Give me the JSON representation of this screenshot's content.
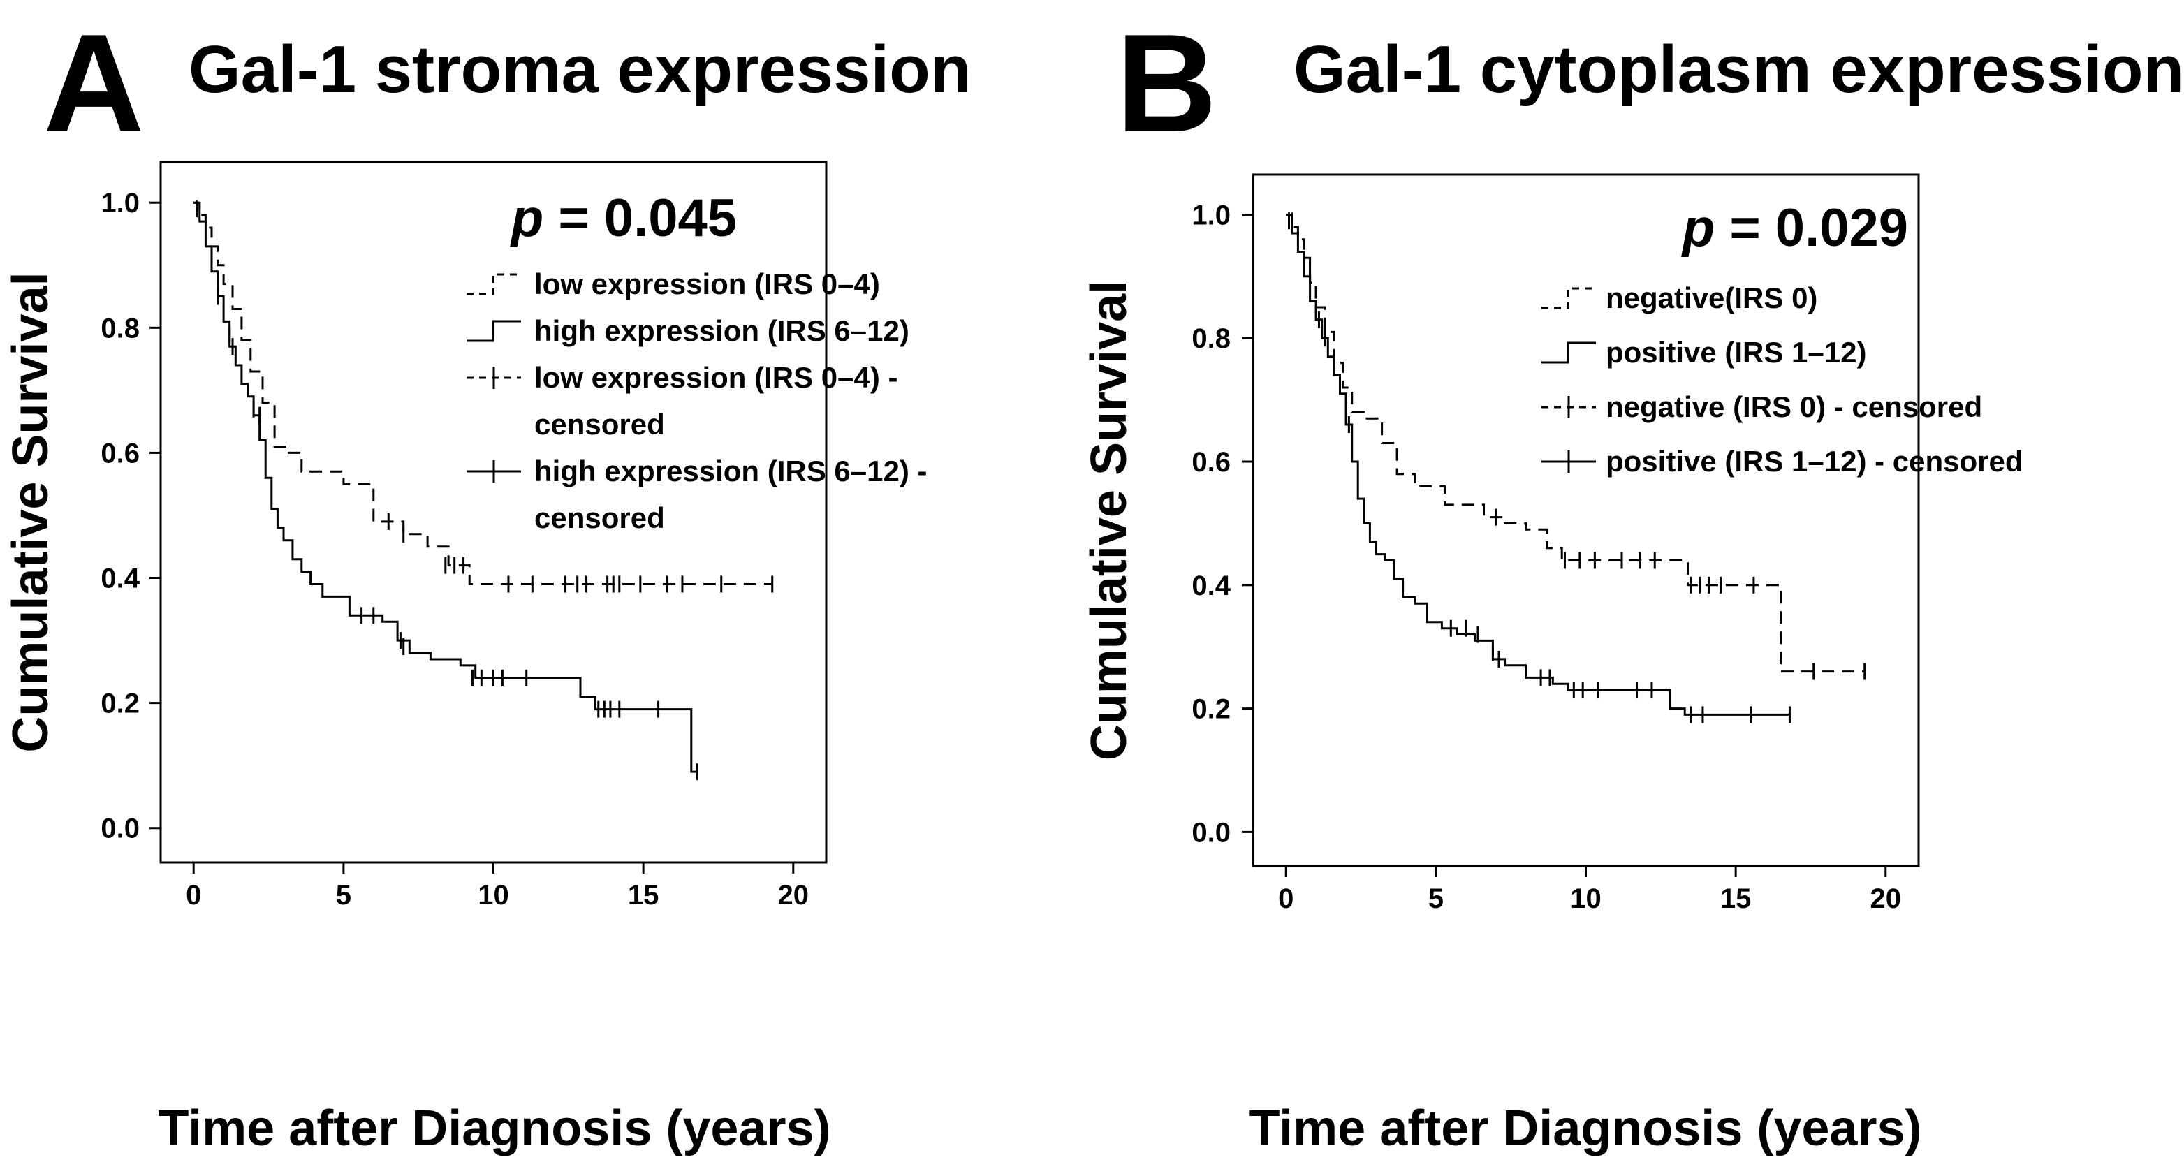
{
  "chart_data": [
    {
      "panel": "A",
      "type": "line",
      "title": "Gal-1 stroma expression",
      "xlabel": "Time after Diagnosis (years)",
      "ylabel": "Cumulative Survival",
      "xlim": [
        -1.1,
        21.1
      ],
      "ylim": [
        -0.055,
        1.065
      ],
      "xticks": [
        0,
        5,
        10,
        15,
        20
      ],
      "xtick_labels": [
        "0",
        "5",
        "10",
        "15",
        "20"
      ],
      "yticks": [
        0.0,
        0.2,
        0.4,
        0.6,
        0.8,
        1.0
      ],
      "ytick_labels": [
        "0.0",
        "0.2",
        "0.4",
        "0.6",
        "0.8",
        "1.0"
      ],
      "p_label": "p",
      "p_value": "= 0.045",
      "legend": [
        {
          "label": "low expression (IRS 0–4)",
          "style": "dashed",
          "marker": "step"
        },
        {
          "label": "high expression (IRS 6–12)",
          "style": "solid",
          "marker": "step"
        },
        {
          "label": "low expression (IRS 0–4) -",
          "label2": "censored",
          "style": "dashed",
          "marker": "censor"
        },
        {
          "label": "high expression (IRS 6–12) -",
          "label2": "censored",
          "style": "solid",
          "marker": "censor"
        }
      ],
      "series": [
        {
          "name": "low expression (IRS 0–4)",
          "style": "dashed",
          "x": [
            0,
            0.2,
            0.4,
            0.6,
            0.8,
            1.0,
            1.3,
            1.6,
            1.9,
            2.3,
            2.7,
            3.1,
            3.6,
            4.3,
            5.0,
            6.0,
            7.0,
            7.8,
            8.5,
            9.2,
            19.3
          ],
          "y": [
            1.0,
            0.98,
            0.96,
            0.93,
            0.9,
            0.87,
            0.83,
            0.78,
            0.73,
            0.68,
            0.61,
            0.6,
            0.57,
            0.57,
            0.55,
            0.49,
            0.47,
            0.45,
            0.42,
            0.39,
            0.39
          ],
          "censored": [
            [
              2.2,
              0.66
            ],
            [
              6.5,
              0.49
            ],
            [
              7.0,
              0.47
            ],
            [
              8.4,
              0.42
            ],
            [
              8.7,
              0.42
            ],
            [
              9.0,
              0.42
            ],
            [
              10.5,
              0.39
            ],
            [
              11.3,
              0.39
            ],
            [
              12.4,
              0.39
            ],
            [
              12.8,
              0.39
            ],
            [
              13.1,
              0.39
            ],
            [
              13.8,
              0.39
            ],
            [
              14.0,
              0.39
            ],
            [
              14.2,
              0.39
            ],
            [
              14.9,
              0.39
            ],
            [
              15.8,
              0.39
            ],
            [
              16.3,
              0.39
            ],
            [
              17.6,
              0.39
            ],
            [
              19.3,
              0.39
            ]
          ]
        },
        {
          "name": "high expression (IRS 6–12)",
          "style": "solid",
          "x": [
            0,
            0.2,
            0.4,
            0.6,
            0.8,
            1.0,
            1.2,
            1.4,
            1.6,
            1.8,
            2.0,
            2.2,
            2.4,
            2.6,
            2.8,
            3.0,
            3.3,
            3.6,
            3.9,
            4.3,
            4.7,
            5.2,
            5.8,
            6.3,
            6.8,
            7.2,
            7.9,
            8.9,
            9.4,
            10.5,
            11.5,
            12.9,
            13.4,
            16.6,
            16.8
          ],
          "y": [
            1.0,
            0.97,
            0.93,
            0.89,
            0.85,
            0.81,
            0.77,
            0.74,
            0.71,
            0.69,
            0.66,
            0.62,
            0.56,
            0.51,
            0.48,
            0.46,
            0.43,
            0.41,
            0.39,
            0.37,
            0.37,
            0.34,
            0.34,
            0.33,
            0.3,
            0.28,
            0.27,
            0.26,
            0.24,
            0.24,
            0.24,
            0.21,
            0.19,
            0.09,
            0.09
          ],
          "censored": [
            [
              0.1,
              0.99
            ],
            [
              0.8,
              0.85
            ],
            [
              1.2,
              0.79
            ],
            [
              1.3,
              0.77
            ],
            [
              2.0,
              0.67
            ],
            [
              5.6,
              0.34
            ],
            [
              6.0,
              0.34
            ],
            [
              6.9,
              0.3
            ],
            [
              7.0,
              0.29
            ],
            [
              9.3,
              0.24
            ],
            [
              9.6,
              0.24
            ],
            [
              10.0,
              0.24
            ],
            [
              10.3,
              0.24
            ],
            [
              11.1,
              0.24
            ],
            [
              13.5,
              0.19
            ],
            [
              13.7,
              0.19
            ],
            [
              13.9,
              0.19
            ],
            [
              14.2,
              0.19
            ],
            [
              15.5,
              0.19
            ],
            [
              16.8,
              0.09
            ]
          ]
        }
      ]
    },
    {
      "panel": "B",
      "type": "line",
      "title": "Gal-1 cytoplasm expression",
      "xlabel": "Time after Diagnosis (years)",
      "ylabel": "Cumulative Survival",
      "xlim": [
        -1.1,
        21.1
      ],
      "ylim": [
        -0.055,
        1.065
      ],
      "xticks": [
        0,
        5,
        10,
        15,
        20
      ],
      "xtick_labels": [
        "0",
        "5",
        "10",
        "15",
        "20"
      ],
      "yticks": [
        0.0,
        0.2,
        0.4,
        0.6,
        0.8,
        1.0
      ],
      "ytick_labels": [
        "0.0",
        "0.2",
        "0.4",
        "0.6",
        "0.8",
        "1.0"
      ],
      "p_label": "p",
      "p_value": "= 0.029",
      "legend": [
        {
          "label": "negative(IRS 0)",
          "style": "dashed",
          "marker": "step"
        },
        {
          "label": "positive (IRS 1–12)",
          "style": "solid",
          "marker": "step"
        },
        {
          "label": "negative (IRS 0) - censored",
          "style": "dashed",
          "marker": "censor"
        },
        {
          "label": "positive (IRS 1–12) - censored",
          "style": "solid",
          "marker": "censor"
        }
      ],
      "series": [
        {
          "name": "negative(IRS 0)",
          "style": "dashed",
          "x": [
            0,
            0.2,
            0.4,
            0.6,
            0.8,
            1.0,
            1.3,
            1.6,
            1.9,
            2.2,
            2.6,
            3.2,
            3.7,
            4.3,
            5.3,
            6.6,
            7.3,
            8.0,
            8.7,
            9.2,
            13.4,
            16.5,
            19.3
          ],
          "y": [
            1.0,
            0.98,
            0.96,
            0.93,
            0.89,
            0.85,
            0.81,
            0.76,
            0.72,
            0.68,
            0.67,
            0.63,
            0.58,
            0.56,
            0.53,
            0.51,
            0.5,
            0.49,
            0.46,
            0.44,
            0.4,
            0.26,
            0.26
          ],
          "censored": [
            [
              0.2,
              0.99
            ],
            [
              7.0,
              0.51
            ],
            [
              9.3,
              0.44
            ],
            [
              9.8,
              0.44
            ],
            [
              10.3,
              0.44
            ],
            [
              11.2,
              0.44
            ],
            [
              11.8,
              0.44
            ],
            [
              12.3,
              0.44
            ],
            [
              13.5,
              0.4
            ],
            [
              13.8,
              0.4
            ],
            [
              14.1,
              0.4
            ],
            [
              14.5,
              0.4
            ],
            [
              15.6,
              0.4
            ],
            [
              17.6,
              0.26
            ],
            [
              19.3,
              0.26
            ]
          ]
        },
        {
          "name": "positive (IRS 1–12)",
          "style": "solid",
          "x": [
            0,
            0.2,
            0.4,
            0.6,
            0.8,
            1.0,
            1.2,
            1.4,
            1.6,
            1.8,
            2.0,
            2.2,
            2.4,
            2.6,
            2.8,
            3.0,
            3.3,
            3.6,
            3.9,
            4.3,
            4.7,
            5.2,
            5.7,
            6.3,
            6.9,
            7.3,
            8.0,
            8.9,
            9.4,
            10.5,
            11.5,
            12.8,
            13.3,
            16.8
          ],
          "y": [
            1.0,
            0.97,
            0.94,
            0.9,
            0.86,
            0.83,
            0.8,
            0.77,
            0.74,
            0.71,
            0.66,
            0.6,
            0.54,
            0.5,
            0.47,
            0.45,
            0.44,
            0.41,
            0.38,
            0.37,
            0.34,
            0.33,
            0.32,
            0.31,
            0.28,
            0.27,
            0.25,
            0.24,
            0.23,
            0.23,
            0.23,
            0.2,
            0.19,
            0.19
          ],
          "censored": [
            [
              0.1,
              0.99
            ],
            [
              0.8,
              0.91
            ],
            [
              1.1,
              0.83
            ],
            [
              1.3,
              0.8
            ],
            [
              2.1,
              0.66
            ],
            [
              5.5,
              0.33
            ],
            [
              6.0,
              0.33
            ],
            [
              6.4,
              0.32
            ],
            [
              6.9,
              0.29
            ],
            [
              7.1,
              0.28
            ],
            [
              8.5,
              0.25
            ],
            [
              8.8,
              0.25
            ],
            [
              9.6,
              0.23
            ],
            [
              9.9,
              0.23
            ],
            [
              10.4,
              0.23
            ],
            [
              11.7,
              0.23
            ],
            [
              12.2,
              0.23
            ],
            [
              13.5,
              0.19
            ],
            [
              13.9,
              0.19
            ],
            [
              15.5,
              0.19
            ],
            [
              16.8,
              0.19
            ]
          ]
        }
      ]
    }
  ]
}
